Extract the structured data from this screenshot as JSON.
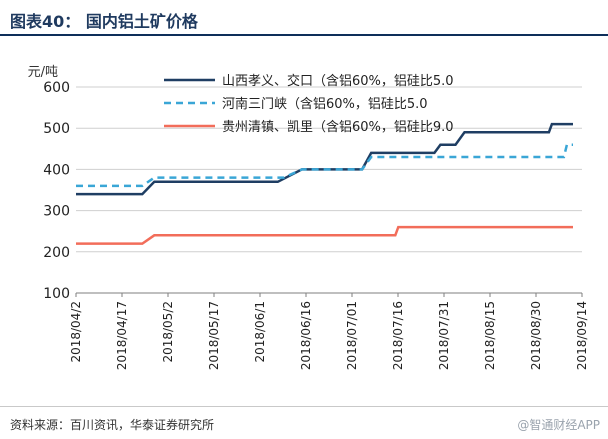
{
  "header": {
    "title": "图表40：  国内铝土矿价格"
  },
  "footer": {
    "source": "资料来源：百川资讯，华泰证券研究所"
  },
  "watermark": "@智通财经APP",
  "colors": {
    "navy": "#1f3e63",
    "teal": "#3aa6d6",
    "red": "#f26d5a",
    "grid": "#cfcfcf",
    "axis": "#7f7f7f"
  },
  "chart_data": {
    "type": "line",
    "yunit": "元/吨",
    "ylim": [
      100,
      600
    ],
    "yticks": [
      100,
      200,
      300,
      400,
      500,
      600
    ],
    "xlim": [
      "2018-04-02",
      "2018-09-17"
    ],
    "xticks": [
      "2018/04/2",
      "2018/04/17",
      "2018/05/2",
      "2018/05/17",
      "2018/06/1",
      "2018/06/16",
      "2018/07/01",
      "2018/07/16",
      "2018/07/31",
      "2018/08/15",
      "2018/08/30",
      "2018/09/14"
    ],
    "grid": "horizontal",
    "legend": "top-right",
    "series": [
      {
        "name": "山西孝义、交口（含铝60%，铝硅比5.0",
        "color": "#1f3e63",
        "style": "solid",
        "x": [
          "2018-04-02",
          "2018-04-24",
          "2018-04-28",
          "2018-06-08",
          "2018-06-16",
          "2018-07-06",
          "2018-07-09",
          "2018-07-30",
          "2018-08-01",
          "2018-08-06",
          "2018-08-09",
          "2018-09-06",
          "2018-09-07",
          "2018-09-14"
        ],
        "y": [
          340,
          340,
          370,
          370,
          400,
          400,
          440,
          440,
          460,
          460,
          490,
          490,
          510,
          510
        ]
      },
      {
        "name": "河南三门峡（含铝60%，铝硅比5.0",
        "color": "#3aa6d6",
        "style": "dashed",
        "x": [
          "2018-04-02",
          "2018-04-24",
          "2018-04-28",
          "2018-06-10",
          "2018-06-16",
          "2018-07-06",
          "2018-07-09",
          "2018-09-11",
          "2018-09-12",
          "2018-09-14"
        ],
        "y": [
          360,
          360,
          380,
          380,
          400,
          400,
          430,
          430,
          460,
          460
        ]
      },
      {
        "name": "贵州清镇、凯里（含铝60%，铝硅比9.0",
        "color": "#f26d5a",
        "style": "solid",
        "x": [
          "2018-04-02",
          "2018-04-24",
          "2018-04-28",
          "2018-07-17",
          "2018-07-18",
          "2018-09-14"
        ],
        "y": [
          220,
          220,
          240,
          240,
          260,
          260
        ]
      }
    ]
  }
}
